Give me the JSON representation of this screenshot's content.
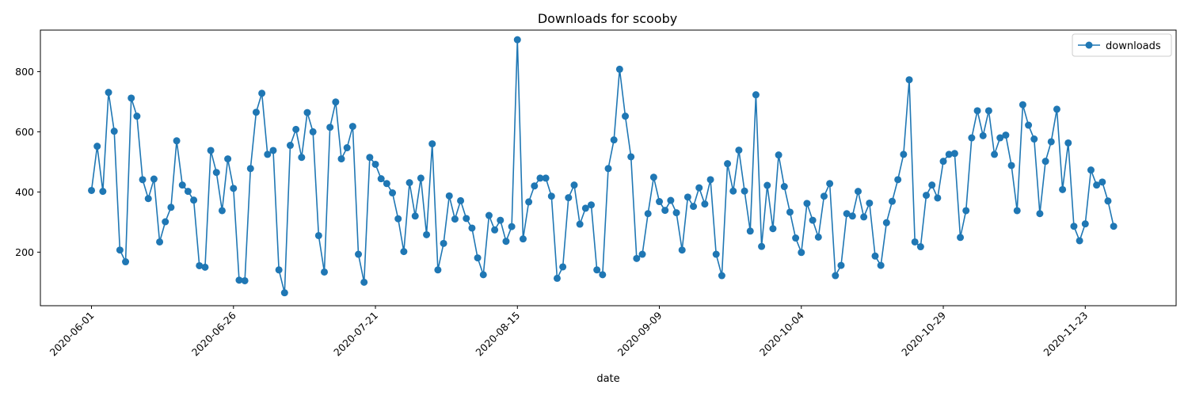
{
  "chart_data": {
    "type": "line",
    "title": "Downloads for scooby",
    "xlabel": "date",
    "ylabel": "",
    "grid": false,
    "legend_position": "top-right",
    "color": "#1f77b4",
    "x_start": "2020-06-01",
    "x_ticks": [
      "2020-06-01",
      "2020-06-26",
      "2020-07-21",
      "2020-08-15",
      "2020-09-09",
      "2020-10-04",
      "2020-10-29",
      "2020-11-23"
    ],
    "y_ticks": [
      200,
      400,
      600,
      800
    ],
    "xlim": [
      "2020-05-23",
      "2020-12-09"
    ],
    "ylim": [
      22,
      938
    ],
    "series": [
      {
        "name": "downloads",
        "marker": "circle",
        "values": [
          405,
          552,
          402,
          731,
          602,
          207,
          168,
          712,
          652,
          441,
          378,
          443,
          234,
          301,
          349,
          570,
          423,
          402,
          373,
          155,
          150,
          538,
          465,
          338,
          510,
          412,
          107,
          105,
          478,
          665,
          728,
          525,
          538,
          141,
          65,
          555,
          608,
          515,
          664,
          600,
          255,
          134,
          615,
          699,
          510,
          547,
          618,
          193,
          100,
          515,
          492,
          444,
          428,
          397,
          311,
          202,
          431,
          320,
          446,
          258,
          560,
          141,
          229,
          387,
          310,
          371,
          312,
          280,
          181,
          125,
          322,
          274,
          306,
          236,
          285,
          906,
          244,
          367,
          420,
          446,
          446,
          386,
          113,
          151,
          381,
          423,
          293,
          346,
          357,
          141,
          125,
          478,
          573,
          808,
          652,
          517,
          179,
          193,
          328,
          449,
          368,
          339,
          372,
          331,
          207,
          383,
          352,
          414,
          360,
          441,
          193,
          122,
          494,
          403,
          539,
          403,
          270,
          723,
          219,
          422,
          278,
          523,
          418,
          333,
          247,
          199,
          362,
          306,
          250,
          386,
          428,
          122,
          156,
          328,
          320,
          402,
          317,
          363,
          187,
          156,
          298,
          369,
          441,
          525,
          773,
          234,
          218,
          389,
          423,
          380,
          502,
          525,
          528,
          249,
          338,
          580,
          670,
          587,
          670,
          525,
          580,
          589,
          488,
          338,
          690,
          622,
          576,
          328,
          502,
          567,
          675,
          408,
          563,
          286,
          238,
          294,
          473,
          423,
          433,
          370,
          286
        ]
      }
    ]
  }
}
